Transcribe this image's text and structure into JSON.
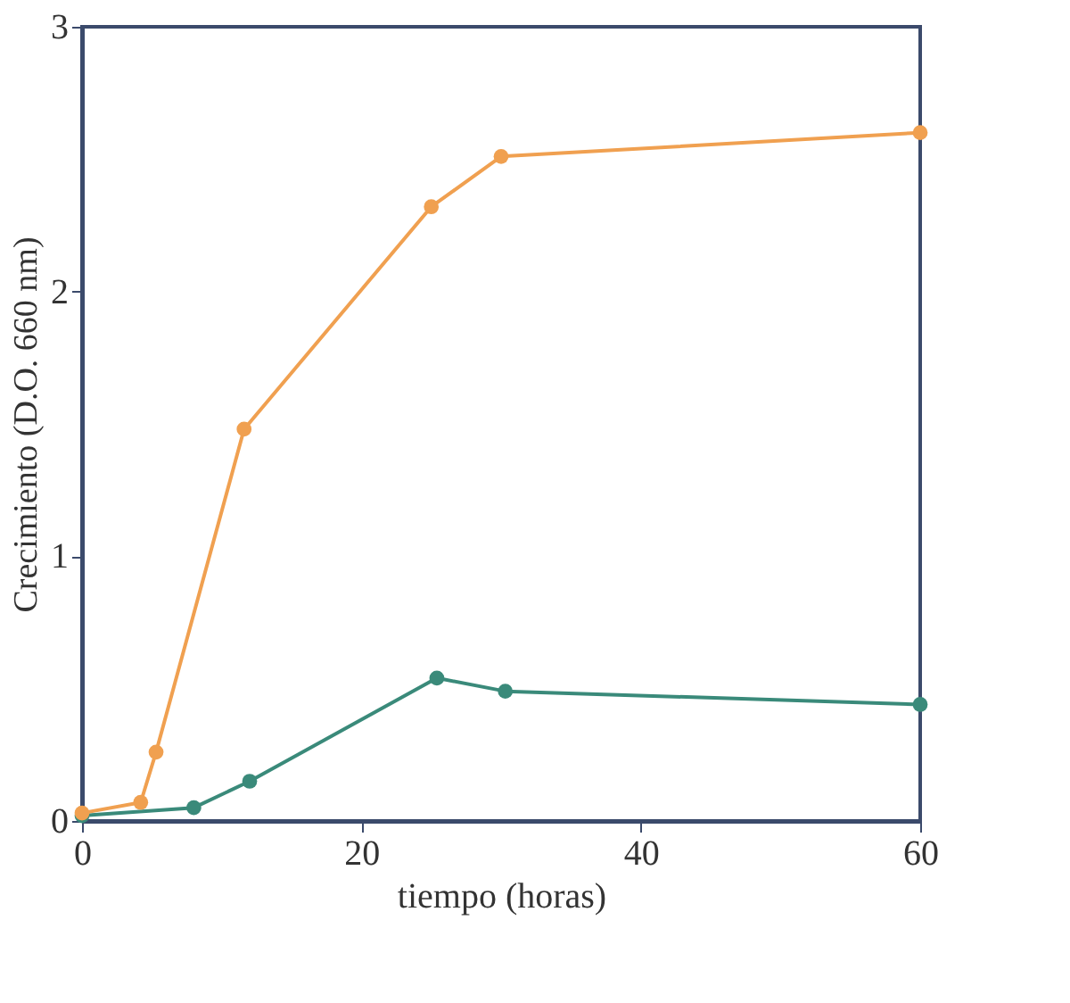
{
  "chart_data": {
    "type": "line",
    "xlabel": "tiempo (horas)",
    "ylabel": "Crecimiento (D.O. 660 nm)",
    "xlim": [
      0,
      60
    ],
    "ylim": [
      0,
      3
    ],
    "xticks": [
      0,
      20,
      40,
      60
    ],
    "yticks": [
      0,
      1,
      2,
      3
    ],
    "grid": false,
    "legend": false,
    "marker": "circle",
    "line_style": "solid",
    "series": [
      {
        "color": "#f0a050",
        "x": [
          0,
          4.2,
          5.3,
          11.6,
          25,
          30,
          60
        ],
        "values": [
          0.03,
          0.07,
          0.26,
          1.48,
          2.32,
          2.51,
          2.6
        ]
      },
      {
        "color": "#3a8a7a",
        "x": [
          0,
          8,
          12,
          25.4,
          30.3,
          60
        ],
        "values": [
          0.02,
          0.05,
          0.15,
          0.54,
          0.49,
          0.44
        ]
      }
    ]
  }
}
